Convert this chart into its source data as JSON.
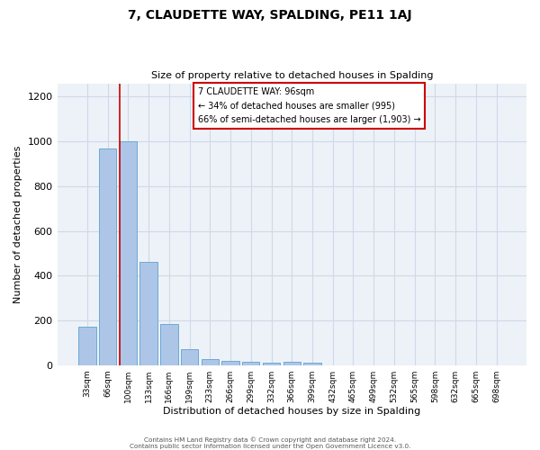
{
  "title": "7, CLAUDETTE WAY, SPALDING, PE11 1AJ",
  "subtitle": "Size of property relative to detached houses in Spalding",
  "xlabel": "Distribution of detached houses by size in Spalding",
  "ylabel": "Number of detached properties",
  "bar_labels": [
    "33sqm",
    "66sqm",
    "100sqm",
    "133sqm",
    "166sqm",
    "199sqm",
    "233sqm",
    "266sqm",
    "299sqm",
    "332sqm",
    "366sqm",
    "399sqm",
    "432sqm",
    "465sqm",
    "499sqm",
    "532sqm",
    "565sqm",
    "598sqm",
    "632sqm",
    "665sqm",
    "698sqm"
  ],
  "bar_values": [
    170,
    970,
    1000,
    460,
    185,
    70,
    25,
    20,
    15,
    10,
    15,
    10,
    0,
    0,
    0,
    0,
    0,
    0,
    0,
    0,
    0
  ],
  "bar_color": "#adc6e8",
  "bar_edge_color": "#6aaad4",
  "grid_color": "#d0d8e8",
  "bg_color": "#edf2f8",
  "red_line_color": "#cc0000",
  "annotation_line1": "7 CLAUDETTE WAY: 96sqm",
  "annotation_line2": "← 34% of detached houses are smaller (995)",
  "annotation_line3": "66% of semi-detached houses are larger (1,903) →",
  "ylim": [
    0,
    1260
  ],
  "yticks": [
    0,
    200,
    400,
    600,
    800,
    1000,
    1200
  ],
  "footer_line1": "Contains HM Land Registry data © Crown copyright and database right 2024.",
  "footer_line2": "Contains public sector information licensed under the Open Government Licence v3.0."
}
